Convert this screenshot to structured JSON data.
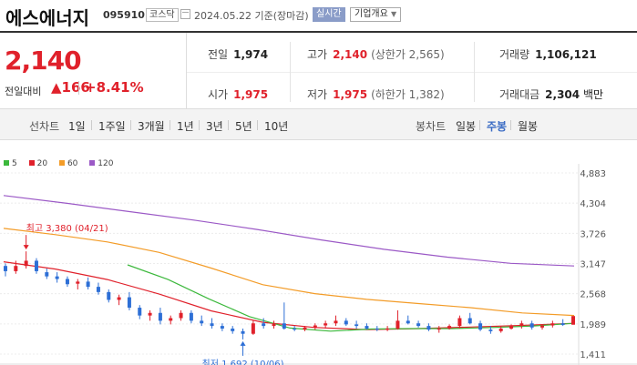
{
  "header": {
    "name": "에스에너지",
    "code": "095910",
    "market": "코스닥",
    "date": "2024.05.22",
    "basis": "기준(장마감)",
    "realtime_label": "실시간",
    "overview_label": "기업개요"
  },
  "quote": {
    "price": "2,140",
    "change_label": "전일대비",
    "change": "166",
    "change_pct": "+8.41%",
    "prev_close_label": "전일",
    "prev_close": "1,974",
    "high_label": "고가",
    "high": "2,140",
    "upper_limit": "(상한가 2,565)",
    "volume_label": "거래량",
    "volume": "1,106,121",
    "open_label": "시가",
    "open": "1,975",
    "low_label": "저가",
    "low": "1,975",
    "lower_limit": "(하한가 1,382)",
    "amount_label": "거래대금",
    "amount": "2,304",
    "amount_unit": "백만"
  },
  "periods": {
    "line_label": "선차트",
    "line_items": [
      "1일",
      "1주일",
      "3개월",
      "1년",
      "3년",
      "5년",
      "10년"
    ],
    "candle_label": "봉차트",
    "candle_items": [
      "일봉",
      "주봉",
      "월봉"
    ],
    "candle_active": "주봉"
  },
  "legend": [
    {
      "label": "5",
      "color": "#3cb83c"
    },
    {
      "label": "20",
      "color": "#e0212b"
    },
    {
      "label": "60",
      "color": "#f39c28"
    },
    {
      "label": "120",
      "color": "#9b59c6"
    }
  ],
  "chart_data": {
    "type": "candlestick",
    "y_ticks": [
      "4,883",
      "4,304",
      "3,726",
      "3,147",
      "2,568",
      "1,989",
      "1,411"
    ],
    "ylim": [
      1411,
      4883
    ],
    "high_annotation": {
      "label": "최고",
      "value": "3,380",
      "date": "(04/21)"
    },
    "low_annotation": {
      "label": "최저",
      "value": "1,692",
      "date": "(10/06)"
    },
    "colors": {
      "up": "#e0212b",
      "down": "#2d6fd6"
    },
    "ma": {
      "120": [
        4450,
        4300,
        4140,
        3980,
        3800,
        3600,
        3420,
        3270,
        3150,
        3100
      ],
      "60": [
        3820,
        3700,
        3560,
        3360,
        3060,
        2740,
        2570,
        2460,
        2380,
        2300,
        2200,
        2150
      ],
      "20": [
        3180,
        3040,
        2840,
        2560,
        2240,
        2020,
        1920,
        1880,
        1900,
        1930,
        1960,
        2000
      ],
      "5": [
        3120,
        2840,
        2470,
        2130,
        1910,
        1850,
        1890,
        1900,
        1900,
        1920,
        1950,
        2000
      ]
    },
    "candles": [
      [
        3100,
        3150,
        2900,
        3000
      ],
      [
        3000,
        3200,
        2950,
        3100
      ],
      [
        3100,
        3380,
        3050,
        3200
      ],
      [
        3200,
        3250,
        2950,
        3000
      ],
      [
        2980,
        3050,
        2850,
        2900
      ],
      [
        2900,
        2980,
        2780,
        2850
      ],
      [
        2850,
        2900,
        2700,
        2750
      ],
      [
        2760,
        2850,
        2650,
        2800
      ],
      [
        2800,
        2880,
        2650,
        2700
      ],
      [
        2700,
        2780,
        2550,
        2600
      ],
      [
        2600,
        2650,
        2400,
        2450
      ],
      [
        2450,
        2550,
        2350,
        2500
      ],
      [
        2500,
        2600,
        2250,
        2300
      ],
      [
        2300,
        2350,
        2080,
        2150
      ],
      [
        2150,
        2250,
        2050,
        2200
      ],
      [
        2200,
        2300,
        1980,
        2050
      ],
      [
        2050,
        2150,
        1980,
        2100
      ],
      [
        2100,
        2250,
        2050,
        2200
      ],
      [
        2200,
        2250,
        2000,
        2050
      ],
      [
        2050,
        2150,
        1950,
        2000
      ],
      [
        2000,
        2100,
        1900,
        1950
      ],
      [
        1950,
        2000,
        1850,
        1900
      ],
      [
        1900,
        1950,
        1800,
        1850
      ],
      [
        1850,
        1900,
        1692,
        1800
      ],
      [
        1800,
        2050,
        1780,
        2000
      ],
      [
        2000,
        2100,
        1900,
        1950
      ],
      [
        1950,
        2050,
        1900,
        2000
      ],
      [
        2000,
        2400,
        1880,
        1900
      ],
      [
        1900,
        1950,
        1850,
        1880
      ],
      [
        1880,
        1950,
        1850,
        1920
      ],
      [
        1920,
        2000,
        1880,
        1960
      ],
      [
        1960,
        2050,
        1900,
        2000
      ],
      [
        2000,
        2150,
        1950,
        2050
      ],
      [
        2050,
        2100,
        1950,
        1980
      ],
      [
        1980,
        2050,
        1900,
        1950
      ],
      [
        1950,
        2000,
        1880,
        1900
      ],
      [
        1900,
        1950,
        1850,
        1880
      ],
      [
        1880,
        1950,
        1850,
        1900
      ],
      [
        1900,
        2250,
        1880,
        2050
      ],
      [
        2050,
        2150,
        1980,
        2000
      ],
      [
        2000,
        2050,
        1920,
        1950
      ],
      [
        1950,
        2000,
        1850,
        1880
      ],
      [
        1880,
        1950,
        1820,
        1900
      ],
      [
        1900,
        1980,
        1880,
        1950
      ],
      [
        1950,
        2150,
        1900,
        2100
      ],
      [
        2100,
        2200,
        1980,
        2000
      ],
      [
        2000,
        2050,
        1850,
        1880
      ],
      [
        1880,
        1950,
        1800,
        1850
      ],
      [
        1850,
        1950,
        1820,
        1900
      ],
      [
        1900,
        1980,
        1880,
        1950
      ],
      [
        1950,
        2050,
        1900,
        2000
      ],
      [
        2000,
        2050,
        1880,
        1920
      ],
      [
        1920,
        1980,
        1880,
        1960
      ],
      [
        1960,
        2050,
        1920,
        2000
      ],
      [
        2000,
        2080,
        1950,
        1970
      ],
      [
        1974,
        2140,
        1975,
        2140
      ]
    ]
  }
}
